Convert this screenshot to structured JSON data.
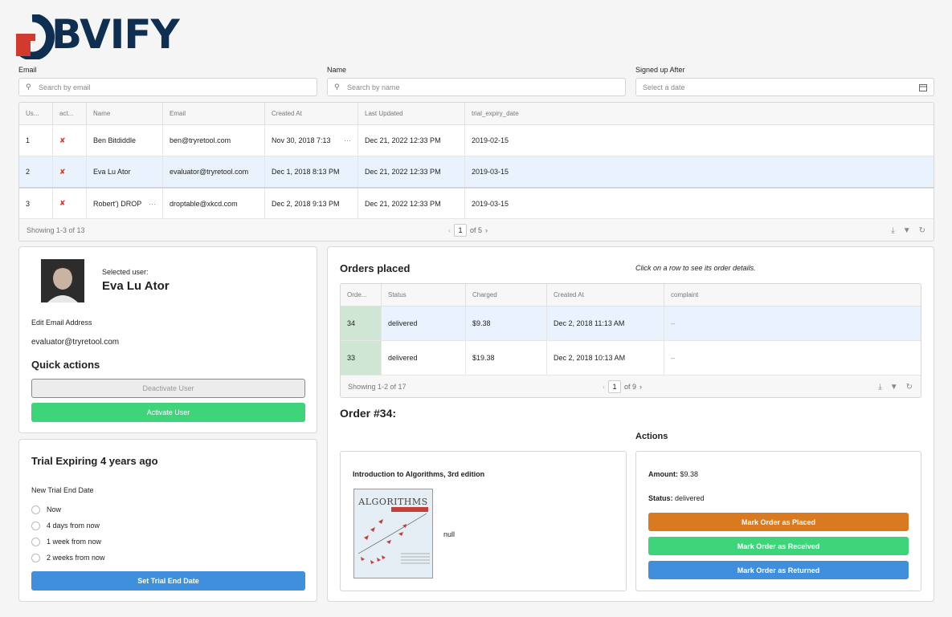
{
  "brand": {
    "name": "OBVIFY",
    "primary_color": "#0e2f52",
    "accent_color": "#d23a2e"
  },
  "filters": {
    "email": {
      "label": "Email",
      "placeholder": "Search by email"
    },
    "name": {
      "label": "Name",
      "placeholder": "Search by name"
    },
    "signup": {
      "label": "Signed up After",
      "placeholder": "Select a date"
    }
  },
  "users_table": {
    "columns": [
      "Us...",
      "act...",
      "Name",
      "Email",
      "Created At",
      "Last Updated",
      "trial_expiry_date"
    ],
    "rows": [
      {
        "id": "1",
        "active": "✘",
        "name": "Ben Bitdiddle",
        "email": "ben@tryretool.com",
        "created": "Nov 30, 2018 7:13",
        "updated": "Dec 21, 2022 12:33 PM",
        "trial": "2019-02-15"
      },
      {
        "id": "2",
        "active": "✘",
        "name": "Eva Lu Ator",
        "email": "evaluator@tryretool.com",
        "created": "Dec 1, 2018 8:13 PM",
        "updated": "Dec 21, 2022 12:33 PM",
        "trial": "2019-03-15"
      },
      {
        "id": "3",
        "active": "✘",
        "name": "Robert') DROP",
        "email": "droptable@xkcd.com",
        "created": "Dec 2, 2018 9:13 PM",
        "updated": "Dec 21, 2022 12:33 PM",
        "trial": "2019-03-15"
      }
    ],
    "footer": "Showing 1-3 of 13",
    "page": "1",
    "page_total": "of 5"
  },
  "selected_user": {
    "caption": "Selected user:",
    "name": "Eva Lu Ator",
    "edit_email_label": "Edit Email Address",
    "email": "evaluator@tryretool.com",
    "quick_actions_title": "Quick actions",
    "deactivate_label": "Deactivate User",
    "activate_label": "Activate User"
  },
  "trial": {
    "title": "Trial Expiring 4 years ago",
    "new_end_label": "New Trial End Date",
    "options": [
      "Now",
      "4 days from now",
      "1 week from now",
      "2 weeks from now"
    ],
    "set_button": "Set Trial End Date"
  },
  "orders": {
    "title": "Orders placed",
    "hint": "Click on a row to see its order details.",
    "columns": [
      "Orde...",
      "Status",
      "Charged",
      "Created At",
      "complaint"
    ],
    "rows": [
      {
        "id": "34",
        "status": "delivered",
        "charged": "$9.38",
        "created": "Dec 2, 2018 11:13 AM",
        "complaint": "–"
      },
      {
        "id": "33",
        "status": "delivered",
        "charged": "$19.38",
        "created": "Dec 2, 2018 10:13 AM",
        "complaint": "–"
      }
    ],
    "footer": "Showing 1-2 of 17",
    "page": "1",
    "page_total": "of 9"
  },
  "order_detail": {
    "title": "Order #34:",
    "book_title": "Introduction to Algorithms, 3rd edition",
    "cover_word": "ALGORITHMS",
    "null_text": "null",
    "actions_title": "Actions",
    "amount_label": "Amount:",
    "amount_value": "$9.38",
    "status_label": "Status:",
    "status_value": "delivered",
    "btn_placed": "Mark Order as Placed",
    "btn_received": "Mark Order as Received",
    "btn_returned": "Mark Order as Returned",
    "colors": {
      "placed": "#d97a21",
      "received": "#3dd47a",
      "returned": "#3f8fdc"
    }
  }
}
